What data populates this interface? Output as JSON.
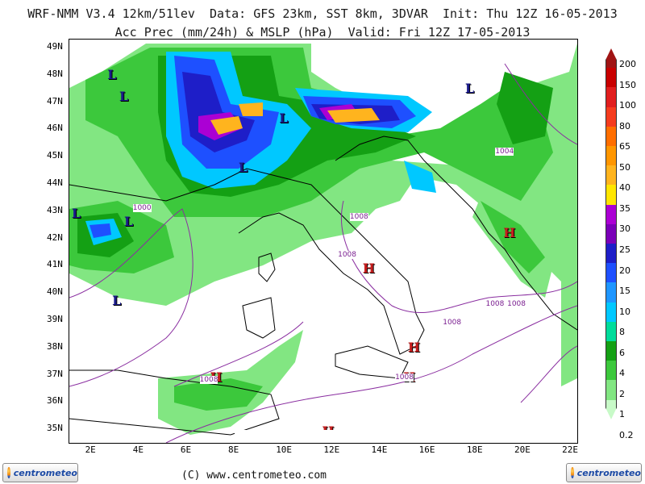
{
  "header": {
    "line1": "WRF-NMM V3.4 12km/51lev  Data: GFS 23km, SST 8km, 3DVAR  Init: Thu 12Z 16-05-2013",
    "line2": "Acc Prec (mm/24h) & MSLP (hPa)  Valid: Fri 12Z 17-05-2013"
  },
  "map": {
    "copyright": "(C) www.centrometeo.com",
    "lat_labels": [
      "49N",
      "48N",
      "47N",
      "46N",
      "45N",
      "44N",
      "43N",
      "42N",
      "41N",
      "40N",
      "39N",
      "38N",
      "37N",
      "36N",
      "35N"
    ],
    "lon_labels": [
      "2E",
      "4E",
      "6E",
      "8E",
      "10E",
      "12E",
      "14E",
      "16E",
      "18E",
      "20E",
      "22E"
    ],
    "pressure_centers": [
      {
        "type": "L",
        "lon": 2.8,
        "lat": 48.0
      },
      {
        "type": "L",
        "lon": 3.3,
        "lat": 47.2
      },
      {
        "type": "L",
        "lon": 8.3,
        "lat": 44.6
      },
      {
        "type": "L",
        "lon": 10.0,
        "lat": 46.4
      },
      {
        "type": "L",
        "lon": 17.8,
        "lat": 47.5
      },
      {
        "type": "L",
        "lon": 1.3,
        "lat": 42.9
      },
      {
        "type": "L",
        "lon": 3.5,
        "lat": 42.6
      },
      {
        "type": "L",
        "lon": 3.0,
        "lat": 39.7
      },
      {
        "type": "H",
        "lon": 13.5,
        "lat": 40.9
      },
      {
        "type": "H",
        "lon": 19.4,
        "lat": 42.2
      },
      {
        "type": "H",
        "lon": 15.4,
        "lat": 38.0
      },
      {
        "type": "H",
        "lon": 15.2,
        "lat": 36.9
      },
      {
        "type": "H",
        "lon": 7.1,
        "lat": 36.9
      },
      {
        "type": "H",
        "lon": 11.8,
        "lat": 34.9
      }
    ],
    "isobar_labels": [
      {
        "text": "1000",
        "lon": 4.0,
        "lat": 43.1
      },
      {
        "text": "1004",
        "lon": 19.2,
        "lat": 45.2
      },
      {
        "text": "1008",
        "lon": 13.1,
        "lat": 42.8
      },
      {
        "text": "1008",
        "lon": 12.6,
        "lat": 41.4
      },
      {
        "text": "1008",
        "lon": 17.0,
        "lat": 38.9
      },
      {
        "text": "1008",
        "lon": 18.8,
        "lat": 39.6
      },
      {
        "text": "1008",
        "lon": 19.7,
        "lat": 39.6
      },
      {
        "text": "1008",
        "lon": 15.0,
        "lat": 36.9
      },
      {
        "text": "1008",
        "lon": 6.8,
        "lat": 36.8
      }
    ]
  },
  "colorbar": {
    "labels": [
      "200",
      "150",
      "100",
      "80",
      "65",
      "50",
      "40",
      "35",
      "30",
      "25",
      "20",
      "15",
      "10",
      "8",
      "6",
      "4",
      "2",
      "1",
      "0.2"
    ],
    "colors": [
      "#a01414",
      "#c80000",
      "#e11e1e",
      "#f53c1e",
      "#ff6e00",
      "#ff9600",
      "#ffb41e",
      "#ffe600",
      "#ab00d4",
      "#7a00b8",
      "#1e1ec8",
      "#1e50ff",
      "#1e96ff",
      "#00c8ff",
      "#00dc9b",
      "#14a014",
      "#3cc83c",
      "#82e682",
      "#c8fac8"
    ]
  },
  "logos": {
    "left": "centrometeo",
    "right": "centrometeo"
  }
}
